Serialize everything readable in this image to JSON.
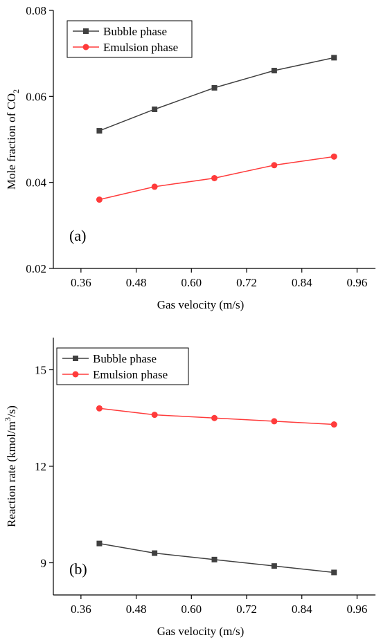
{
  "chart_data": [
    {
      "type": "line",
      "panel_label": "(a)",
      "xlabel": "Gas velocity (m/s)",
      "ylabel_main": "Mole fraction of CO",
      "ylabel_sub": "2",
      "x": [
        0.4,
        0.52,
        0.65,
        0.78,
        0.91
      ],
      "xlim": [
        0.3,
        1.0
      ],
      "ylim": [
        0.02,
        0.08
      ],
      "xticks": [
        0.36,
        0.48,
        0.6,
        0.72,
        0.84,
        0.96
      ],
      "xtick_labels": [
        "0.36",
        "0.48",
        "0.60",
        "0.72",
        "0.84",
        "0.96"
      ],
      "yticks": [
        0.02,
        0.04,
        0.06,
        0.08
      ],
      "ytick_labels": [
        "0.02",
        "0.04",
        "0.06",
        "0.08"
      ],
      "legend_position": "top-left",
      "series": [
        {
          "name": "Bubble phase",
          "marker": "square",
          "color": "#404040",
          "values": [
            0.052,
            0.057,
            0.062,
            0.066,
            0.069
          ]
        },
        {
          "name": "Emulsion phase",
          "marker": "circle",
          "color": "#ff3b3b",
          "values": [
            0.036,
            0.039,
            0.041,
            0.044,
            0.046
          ]
        }
      ]
    },
    {
      "type": "line",
      "panel_label": "(b)",
      "xlabel": "Gas velocity (m/s)",
      "ylabel_main": "Reaction rate (kmol/m",
      "ylabel_sup": "3",
      "ylabel_end": "/s)",
      "x": [
        0.4,
        0.52,
        0.65,
        0.78,
        0.91
      ],
      "xlim": [
        0.3,
        1.0
      ],
      "ylim": [
        8.0,
        16.0
      ],
      "xticks": [
        0.36,
        0.48,
        0.6,
        0.72,
        0.84,
        0.96
      ],
      "xtick_labels": [
        "0.36",
        "0.48",
        "0.60",
        "0.72",
        "0.84",
        "0.96"
      ],
      "yticks": [
        9,
        12,
        15
      ],
      "ytick_labels": [
        "9",
        "12",
        "15"
      ],
      "legend_position": "top-left",
      "series": [
        {
          "name": "Bubble phase",
          "marker": "square",
          "color": "#404040",
          "values": [
            9.6,
            9.3,
            9.1,
            8.9,
            8.7
          ]
        },
        {
          "name": "Emulsion phase",
          "marker": "circle",
          "color": "#ff3b3b",
          "values": [
            13.8,
            13.6,
            13.5,
            13.4,
            13.3
          ]
        }
      ]
    }
  ]
}
